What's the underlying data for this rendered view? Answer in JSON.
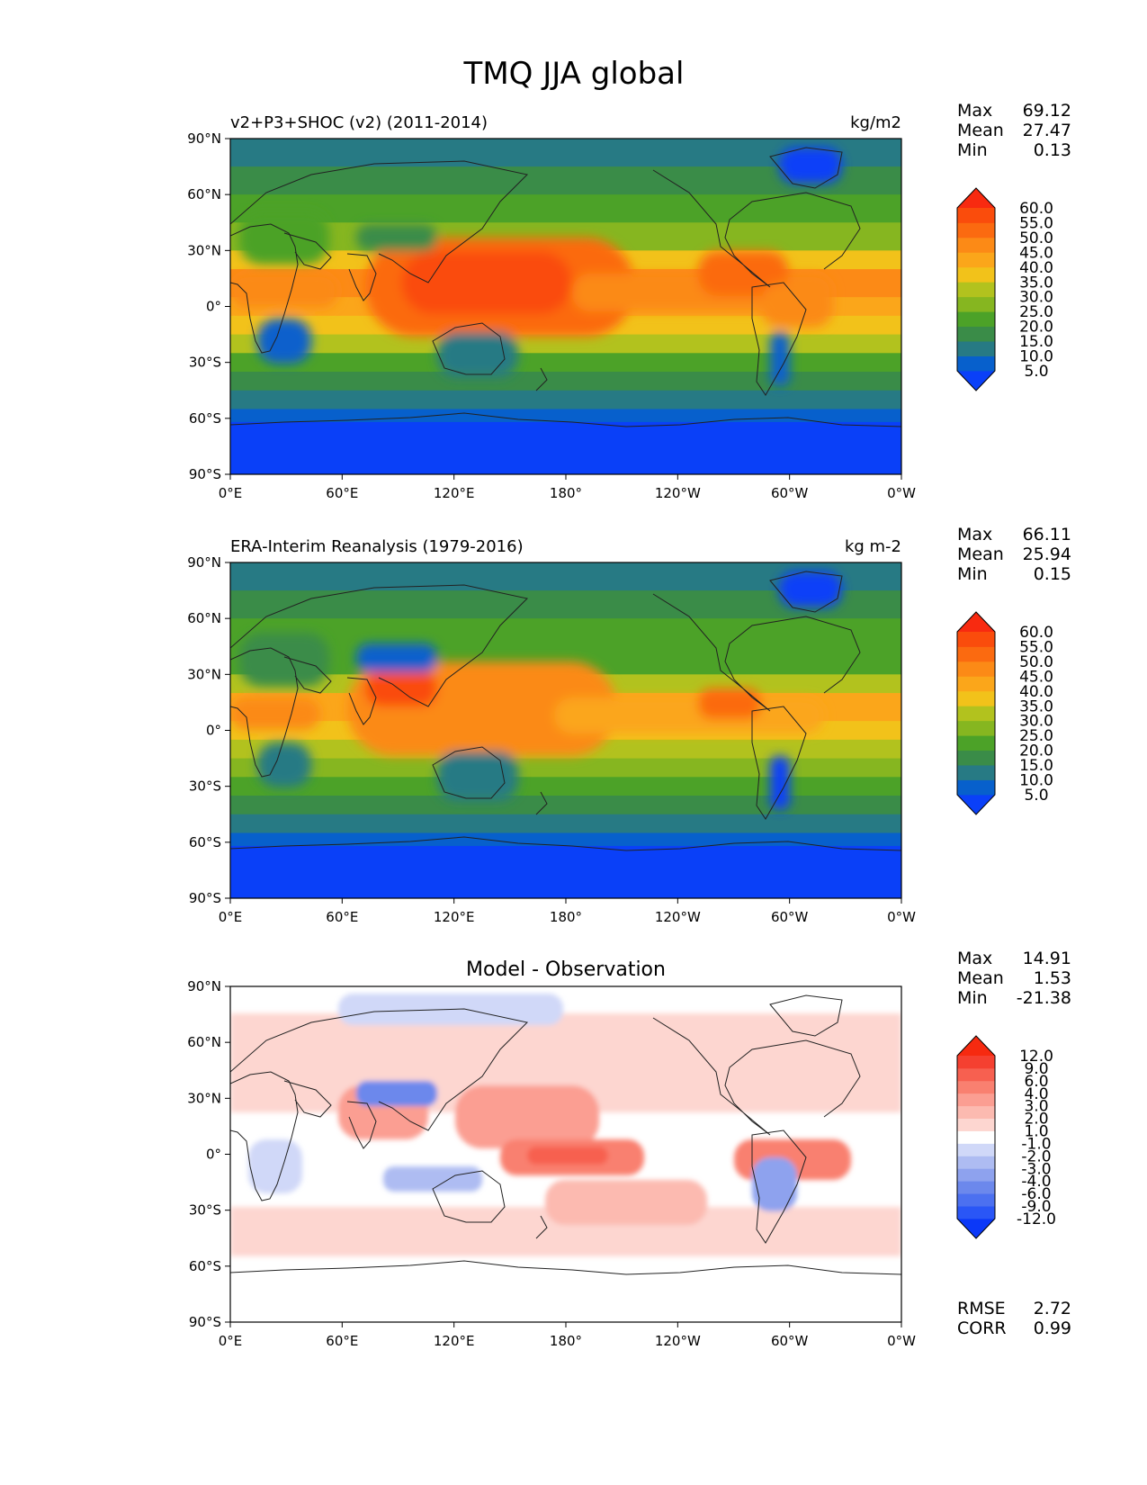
{
  "figure": {
    "title": "TMQ JJA global"
  },
  "chart_data": [
    {
      "type": "heatmap",
      "id": "test",
      "title": "v2+P3+SHOC (v2) (2011-2014)",
      "units": "kg/m2",
      "stats": [
        {
          "label": "Max",
          "value": "69.12"
        },
        {
          "label": "Mean",
          "value": "27.47"
        },
        {
          "label": "Min",
          "value": "0.13"
        }
      ],
      "colorbar": {
        "levels": [
          "5.0",
          "10.0",
          "15.0",
          "20.0",
          "25.0",
          "30.0",
          "35.0",
          "40.0",
          "45.0",
          "50.0",
          "55.0",
          "60.0"
        ],
        "colors": [
          "#0a40f8",
          "#0760cc",
          "#277a84",
          "#3a8c48",
          "#4ca228",
          "#86b620",
          "#b2c21e",
          "#f2c21a",
          "#fba61a",
          "#fc8a16",
          "#fb6a10",
          "#fa4c0c",
          "#f82a10"
        ],
        "extend": "both"
      },
      "xticks": [
        "0°E",
        "60°E",
        "120°E",
        "180°",
        "120°W",
        "60°W",
        "0°W"
      ],
      "yticks": [
        "90°N",
        "60°N",
        "30°N",
        "0°",
        "30°S",
        "60°S",
        "90°S"
      ],
      "xlim": [
        0,
        360
      ],
      "ylim": [
        -90,
        90
      ]
    },
    {
      "type": "heatmap",
      "id": "ref",
      "title": "ERA-Interim Reanalysis (1979-2016)",
      "units": "kg m-2",
      "stats": [
        {
          "label": "Max",
          "value": "66.11"
        },
        {
          "label": "Mean",
          "value": "25.94"
        },
        {
          "label": "Min",
          "value": "0.15"
        }
      ],
      "colorbar": {
        "levels": [
          "5.0",
          "10.0",
          "15.0",
          "20.0",
          "25.0",
          "30.0",
          "35.0",
          "40.0",
          "45.0",
          "50.0",
          "55.0",
          "60.0"
        ],
        "colors": [
          "#0a40f8",
          "#0760cc",
          "#277a84",
          "#3a8c48",
          "#4ca228",
          "#86b620",
          "#b2c21e",
          "#f2c21a",
          "#fba61a",
          "#fc8a16",
          "#fb6a10",
          "#fa4c0c",
          "#f82a10"
        ],
        "extend": "both"
      },
      "xticks": [
        "0°E",
        "60°E",
        "120°E",
        "180°",
        "120°W",
        "60°W",
        "0°W"
      ],
      "yticks": [
        "90°N",
        "60°N",
        "30°N",
        "0°",
        "30°S",
        "60°S",
        "90°S"
      ],
      "xlim": [
        0,
        360
      ],
      "ylim": [
        -90,
        90
      ]
    },
    {
      "type": "heatmap",
      "id": "diff",
      "title": "Model - Observation",
      "units": "",
      "stats": [
        {
          "label": "Max",
          "value": "14.91"
        },
        {
          "label": "Mean",
          "value": "1.53"
        },
        {
          "label": "Min",
          "value": "-21.38"
        }
      ],
      "metrics": [
        {
          "label": "RMSE",
          "value": "2.72"
        },
        {
          "label": "CORR",
          "value": "0.99"
        }
      ],
      "colorbar": {
        "levels": [
          "-12.0",
          "-9.0",
          "-6.0",
          "-4.0",
          "-3.0",
          "-2.0",
          "-1.0",
          "1.0",
          "2.0",
          "3.0",
          "4.0",
          "6.0",
          "9.0",
          "12.0"
        ],
        "colors": [
          "#0b38f8",
          "#2a56f6",
          "#4c70f0",
          "#6c88ec",
          "#8ea2ee",
          "#aebcf2",
          "#d0d8f8",
          "#ffffff",
          "#fdd6d0",
          "#fcbab0",
          "#fb9e92",
          "#f98070",
          "#f76050",
          "#f54030",
          "#f62a10"
        ],
        "extend": "both"
      },
      "xticks": [
        "0°E",
        "60°E",
        "120°E",
        "180°",
        "120°W",
        "60°W",
        "0°W"
      ],
      "yticks": [
        "90°N",
        "60°N",
        "30°N",
        "0°",
        "30°S",
        "60°S",
        "90°S"
      ],
      "xlim": [
        0,
        360
      ],
      "ylim": [
        -90,
        90
      ]
    }
  ]
}
